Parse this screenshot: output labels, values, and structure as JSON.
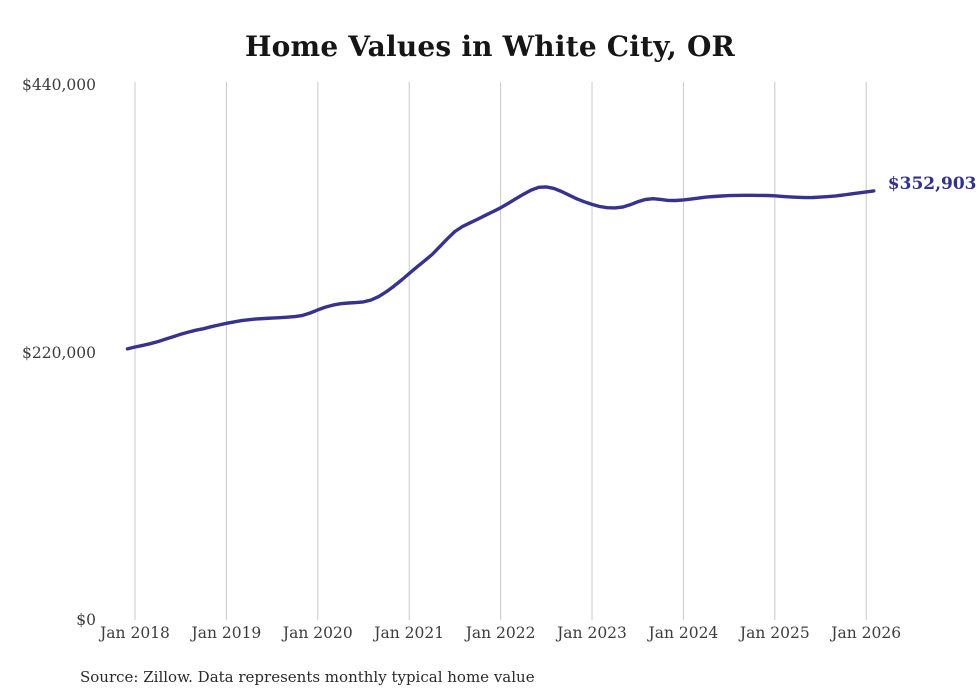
{
  "chart_data": {
    "type": "line",
    "title": "Home Values in White City, OR",
    "source_note": "Source: Zillow. Data represents monthly typical home value",
    "end_label": "$352,903",
    "end_value": 352903,
    "legend": "none",
    "grid": "vertical-yearly-gridlines",
    "colors": {
      "line": "#36338f",
      "end_label": "#32318c",
      "grid_line": "#c9c9c9",
      "axis_text": "#3d3d3d",
      "title_text": "#161616",
      "source_text": "#2a2a2a",
      "background": "#ffffff"
    },
    "y_axis": {
      "min": 0,
      "max": 440000,
      "ticks": [
        {
          "value": 440000,
          "label": "$440,000"
        },
        {
          "value": 220000,
          "label": "$220,000"
        },
        {
          "value": 0,
          "label": "$0"
        }
      ]
    },
    "x_axis": {
      "ticks": [
        {
          "date": "2018-01",
          "label": "Jan 2018"
        },
        {
          "date": "2019-01",
          "label": "Jan 2019"
        },
        {
          "date": "2020-01",
          "label": "Jan 2020"
        },
        {
          "date": "2021-01",
          "label": "Jan 2021"
        },
        {
          "date": "2022-01",
          "label": "Jan 2022"
        },
        {
          "date": "2023-01",
          "label": "Jan 2023"
        },
        {
          "date": "2024-01",
          "label": "Jan 2024"
        },
        {
          "date": "2025-01",
          "label": "Jan 2025"
        },
        {
          "date": "2026-01",
          "label": "Jan 2026"
        }
      ]
    },
    "series": [
      {
        "name": "Monthly typical home value",
        "color": "#36338f",
        "points": [
          [
            "2017-12",
            223000
          ],
          [
            "2018-01",
            224500
          ],
          [
            "2018-02",
            225800
          ],
          [
            "2018-03",
            227200
          ],
          [
            "2018-04",
            229000
          ],
          [
            "2018-05",
            231000
          ],
          [
            "2018-06",
            233000
          ],
          [
            "2018-07",
            235000
          ],
          [
            "2018-08",
            236800
          ],
          [
            "2018-09",
            238300
          ],
          [
            "2018-10",
            239600
          ],
          [
            "2018-11",
            241200
          ],
          [
            "2018-12",
            242600
          ],
          [
            "2019-01",
            244000
          ],
          [
            "2019-02",
            245200
          ],
          [
            "2019-03",
            246200
          ],
          [
            "2019-04",
            247000
          ],
          [
            "2019-05",
            247600
          ],
          [
            "2019-06",
            248000
          ],
          [
            "2019-07",
            248300
          ],
          [
            "2019-08",
            248600
          ],
          [
            "2019-09",
            249000
          ],
          [
            "2019-10",
            249500
          ],
          [
            "2019-11",
            250500
          ],
          [
            "2019-12",
            252500
          ],
          [
            "2020-01",
            255000
          ],
          [
            "2020-02",
            257300
          ],
          [
            "2020-03",
            259000
          ],
          [
            "2020-04",
            260100
          ],
          [
            "2020-05",
            260700
          ],
          [
            "2020-06",
            261000
          ],
          [
            "2020-07",
            261600
          ],
          [
            "2020-08",
            263200
          ],
          [
            "2020-09",
            266000
          ],
          [
            "2020-10",
            270000
          ],
          [
            "2020-11",
            274600
          ],
          [
            "2020-12",
            279600
          ],
          [
            "2021-01",
            285000
          ],
          [
            "2021-02",
            290200
          ],
          [
            "2021-03",
            295300
          ],
          [
            "2021-04",
            300600
          ],
          [
            "2021-05",
            307000
          ],
          [
            "2021-06",
            313500
          ],
          [
            "2021-07",
            319500
          ],
          [
            "2021-08",
            323600
          ],
          [
            "2021-09",
            326700
          ],
          [
            "2021-10",
            329700
          ],
          [
            "2021-11",
            332800
          ],
          [
            "2021-12",
            335900
          ],
          [
            "2022-01",
            339000
          ],
          [
            "2022-02",
            342600
          ],
          [
            "2022-03",
            346500
          ],
          [
            "2022-04",
            350200
          ],
          [
            "2022-05",
            353600
          ],
          [
            "2022-06",
            355900
          ],
          [
            "2022-07",
            356200
          ],
          [
            "2022-08",
            355000
          ],
          [
            "2022-09",
            352400
          ],
          [
            "2022-10",
            349400
          ],
          [
            "2022-11",
            346400
          ],
          [
            "2022-12",
            343900
          ],
          [
            "2023-01",
            341800
          ],
          [
            "2023-02",
            340100
          ],
          [
            "2023-03",
            339100
          ],
          [
            "2023-04",
            338900
          ],
          [
            "2023-05",
            339600
          ],
          [
            "2023-06",
            341500
          ],
          [
            "2023-07",
            343900
          ],
          [
            "2023-08",
            345800
          ],
          [
            "2023-09",
            346500
          ],
          [
            "2023-10",
            345900
          ],
          [
            "2023-11",
            345100
          ],
          [
            "2023-12",
            345000
          ],
          [
            "2024-01",
            345500
          ],
          [
            "2024-02",
            346200
          ],
          [
            "2024-03",
            347000
          ],
          [
            "2024-04",
            347800
          ],
          [
            "2024-05",
            348300
          ],
          [
            "2024-06",
            348700
          ],
          [
            "2024-07",
            349000
          ],
          [
            "2024-08",
            349200
          ],
          [
            "2024-09",
            349300
          ],
          [
            "2024-10",
            349300
          ],
          [
            "2024-11",
            349200
          ],
          [
            "2024-12",
            349100
          ],
          [
            "2025-01",
            348900
          ],
          [
            "2025-02",
            348400
          ],
          [
            "2025-03",
            348000
          ],
          [
            "2025-04",
            347600
          ],
          [
            "2025-05",
            347400
          ],
          [
            "2025-06",
            347500
          ],
          [
            "2025-07",
            347800
          ],
          [
            "2025-08",
            348200
          ],
          [
            "2025-09",
            348800
          ],
          [
            "2025-10",
            349500
          ],
          [
            "2025-11",
            350400
          ],
          [
            "2025-12",
            351300
          ],
          [
            "2026-01",
            352100
          ],
          [
            "2026-02",
            352903
          ]
        ]
      }
    ]
  }
}
